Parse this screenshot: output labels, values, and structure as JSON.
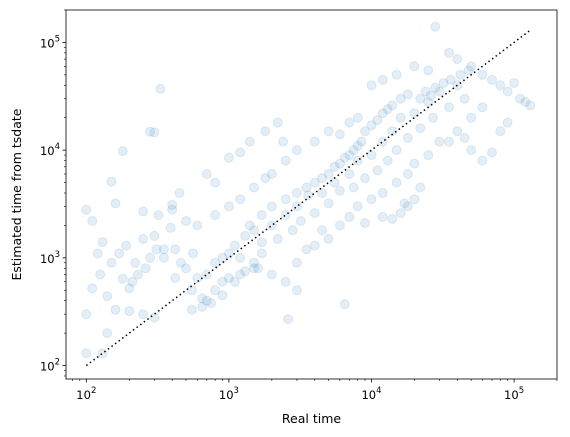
{
  "chart_data": {
    "type": "scatter",
    "title": "",
    "xlabel": "Real time",
    "ylabel": "Estimated time from tsdate",
    "xscale": "log",
    "yscale": "log",
    "xlim": [
      72,
      200000
    ],
    "ylim": [
      75,
      200000
    ],
    "xticks": [
      {
        "value": 100,
        "base": "10",
        "exp": "2"
      },
      {
        "value": 1000,
        "base": "10",
        "exp": "3"
      },
      {
        "value": 10000,
        "base": "10",
        "exp": "4"
      },
      {
        "value": 100000,
        "base": "10",
        "exp": "5"
      }
    ],
    "yticks": [
      {
        "value": 100,
        "base": "10",
        "exp": "2"
      },
      {
        "value": 1000,
        "base": "10",
        "exp": "3"
      },
      {
        "value": 10000,
        "base": "10",
        "exp": "4"
      },
      {
        "value": 100000,
        "base": "10",
        "exp": "5"
      }
    ],
    "grid": false,
    "legend": "none",
    "point_color": "#1f77b4",
    "point_alpha": 0.12,
    "reference_line": {
      "style": "dotted",
      "color": "#000000",
      "from": [
        100,
        100
      ],
      "to": [
        130000,
        130000
      ]
    },
    "series": [
      {
        "points": [
          [
            100,
            2800
          ],
          [
            110,
            2200
          ],
          [
            130,
            1400
          ],
          [
            125,
            700
          ],
          [
            100,
            300
          ],
          [
            140,
            200
          ],
          [
            100,
            130
          ],
          [
            130,
            130
          ],
          [
            150,
            5100
          ],
          [
            160,
            3200
          ],
          [
            180,
            9800
          ],
          [
            120,
            1100
          ],
          [
            110,
            520
          ],
          [
            140,
            440
          ],
          [
            180,
            640
          ],
          [
            200,
            520
          ],
          [
            220,
            900
          ],
          [
            250,
            1500
          ],
          [
            300,
            1600
          ],
          [
            350,
            1200
          ],
          [
            160,
            330
          ],
          [
            200,
            320
          ],
          [
            250,
            300
          ],
          [
            300,
            280
          ],
          [
            330,
            37000
          ],
          [
            280,
            14800
          ],
          [
            300,
            14600
          ],
          [
            390,
            1900
          ],
          [
            420,
            1200
          ],
          [
            460,
            900
          ],
          [
            500,
            800
          ],
          [
            560,
            1100
          ],
          [
            600,
            650
          ],
          [
            700,
            700
          ],
          [
            800,
            900
          ],
          [
            900,
            1000
          ],
          [
            1000,
            1100
          ],
          [
            1100,
            1300
          ],
          [
            1200,
            1000
          ],
          [
            1300,
            1600
          ],
          [
            700,
            400
          ],
          [
            800,
            500
          ],
          [
            900,
            600
          ],
          [
            1000,
            650
          ],
          [
            1200,
            700
          ],
          [
            1500,
            800
          ],
          [
            1500,
            1800
          ],
          [
            1700,
            1400
          ],
          [
            2000,
            2000
          ],
          [
            2200,
            1500
          ],
          [
            2500,
            2500
          ],
          [
            2800,
            1800
          ],
          [
            3000,
            3000
          ],
          [
            3200,
            2200
          ],
          [
            3600,
            3800
          ],
          [
            4000,
            2600
          ],
          [
            4500,
            4000
          ],
          [
            5000,
            3200
          ],
          [
            5500,
            5000
          ],
          [
            6000,
            4200
          ],
          [
            7000,
            6000
          ],
          [
            7500,
            4500
          ],
          [
            8000,
            8000
          ],
          [
            9000,
            5500
          ],
          [
            10000,
            9000
          ],
          [
            11000,
            6500
          ],
          [
            12000,
            12000
          ],
          [
            13000,
            8000
          ],
          [
            14000,
            15000
          ],
          [
            15000,
            10000
          ],
          [
            16000,
            20000
          ],
          [
            18000,
            13000
          ],
          [
            20000,
            22000
          ],
          [
            22000,
            16000
          ],
          [
            25000,
            28000
          ],
          [
            27000,
            20000
          ],
          [
            30000,
            35000
          ],
          [
            35000,
            25000
          ],
          [
            40000,
            40000
          ],
          [
            45000,
            30000
          ],
          [
            2000,
            6000
          ],
          [
            2500,
            8000
          ],
          [
            3000,
            10000
          ],
          [
            4000,
            12000
          ],
          [
            5000,
            15000
          ],
          [
            6000,
            14000
          ],
          [
            7000,
            18000
          ],
          [
            8000,
            20000
          ],
          [
            1500,
            4500
          ],
          [
            1800,
            5500
          ],
          [
            1200,
            3500
          ],
          [
            1000,
            3000
          ],
          [
            800,
            2500
          ],
          [
            600,
            2000
          ],
          [
            500,
            2200
          ],
          [
            400,
            2800
          ],
          [
            3000,
            900
          ],
          [
            4000,
            1300
          ],
          [
            5000,
            1500
          ],
          [
            6000,
            2000
          ],
          [
            7000,
            2400
          ],
          [
            8000,
            3000
          ],
          [
            10000,
            3500
          ],
          [
            12000,
            4000
          ],
          [
            15000,
            5000
          ],
          [
            18000,
            6000
          ],
          [
            20000,
            7500
          ],
          [
            25000,
            9000
          ],
          [
            30000,
            12000
          ],
          [
            40000,
            15000
          ],
          [
            50000,
            20000
          ],
          [
            60000,
            25000
          ],
          [
            10000,
            40000
          ],
          [
            12000,
            45000
          ],
          [
            15000,
            50000
          ],
          [
            20000,
            60000
          ],
          [
            25000,
            55000
          ],
          [
            28000,
            140000
          ],
          [
            35000,
            80000
          ],
          [
            40000,
            70000
          ],
          [
            50000,
            60000
          ],
          [
            60000,
            50000
          ],
          [
            70000,
            45000
          ],
          [
            80000,
            40000
          ],
          [
            90000,
            35000
          ],
          [
            100000,
            42000
          ],
          [
            110000,
            30000
          ],
          [
            120000,
            28000
          ],
          [
            130000,
            26000
          ],
          [
            90000,
            18000
          ],
          [
            80000,
            15000
          ],
          [
            70000,
            9500
          ],
          [
            60000,
            8000
          ],
          [
            50000,
            10000
          ],
          [
            45000,
            13000
          ],
          [
            35000,
            12000
          ],
          [
            2600,
            270
          ],
          [
            3000,
            500
          ],
          [
            2500,
            600
          ],
          [
            2000,
            700
          ],
          [
            1600,
            800
          ],
          [
            3500,
            1200
          ],
          [
            4500,
            1800
          ],
          [
            6500,
            370
          ],
          [
            14000,
            2300
          ],
          [
            16000,
            2600
          ],
          [
            18000,
            3000
          ],
          [
            20000,
            3500
          ],
          [
            22000,
            4500
          ],
          [
            17000,
            3200
          ],
          [
            12000,
            2400
          ],
          [
            9000,
            2100
          ],
          [
            1000,
            8500
          ],
          [
            1200,
            9500
          ],
          [
            1400,
            12000
          ],
          [
            1800,
            15000
          ],
          [
            2200,
            18000
          ],
          [
            2400,
            12000
          ],
          [
            700,
            6000
          ],
          [
            800,
            5000
          ],
          [
            250,
            2700
          ],
          [
            320,
            2500
          ],
          [
            400,
            3100
          ],
          [
            450,
            4000
          ],
          [
            350,
            1000
          ],
          [
            420,
            650
          ],
          [
            550,
            500
          ],
          [
            650,
            350
          ],
          [
            150,
            900
          ],
          [
            170,
            1100
          ],
          [
            190,
            1300
          ],
          [
            210,
            600
          ],
          [
            230,
            700
          ],
          [
            260,
            800
          ],
          [
            280,
            1000
          ],
          [
            310,
            1200
          ],
          [
            5000,
            6000
          ],
          [
            5500,
            7000
          ],
          [
            6000,
            7500
          ],
          [
            6500,
            8500
          ],
          [
            7000,
            9000
          ],
          [
            7500,
            10000
          ],
          [
            8000,
            11000
          ],
          [
            8500,
            12000
          ],
          [
            3000,
            4000
          ],
          [
            3500,
            4500
          ],
          [
            4000,
            5000
          ],
          [
            4500,
            5500
          ],
          [
            2500,
            3500
          ],
          [
            2000,
            3000
          ],
          [
            1700,
            2500
          ],
          [
            1400,
            2000
          ],
          [
            9000,
            15000
          ],
          [
            10000,
            17000
          ],
          [
            11000,
            19000
          ],
          [
            12000,
            22000
          ],
          [
            13000,
            24000
          ],
          [
            14000,
            26000
          ],
          [
            16000,
            30000
          ],
          [
            18000,
            33000
          ],
          [
            1100,
            600
          ],
          [
            1300,
            750
          ],
          [
            1500,
            900
          ],
          [
            1700,
            1100
          ],
          [
            900,
            450
          ],
          [
            750,
            380
          ],
          [
            650,
            420
          ],
          [
            550,
            330
          ],
          [
            22000,
            30000
          ],
          [
            24000,
            35000
          ],
          [
            26000,
            32000
          ],
          [
            28000,
            38000
          ],
          [
            32000,
            42000
          ],
          [
            36000,
            45000
          ],
          [
            42000,
            50000
          ],
          [
            48000,
            55000
          ]
        ]
      }
    ]
  }
}
